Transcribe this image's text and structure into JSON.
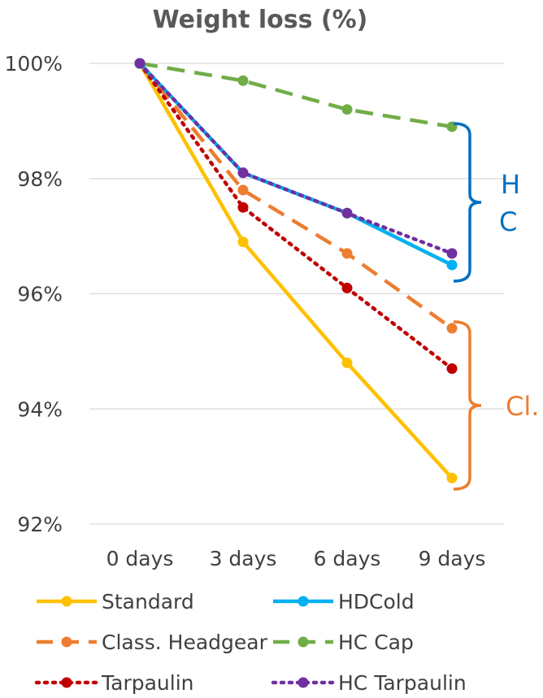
{
  "chart_data": {
    "type": "line",
    "title": "Weight loss (%)",
    "xlabel": "",
    "ylabel": "",
    "categories": [
      "0 days",
      "3 days",
      "6 days",
      "9 days"
    ],
    "ylim": [
      92,
      100
    ],
    "yticks": [
      "100%",
      "98%",
      "96%",
      "94%",
      "92%"
    ],
    "ytick_values": [
      100,
      98,
      96,
      94,
      92
    ],
    "grid": true,
    "legend": "bottom",
    "series": [
      {
        "name": "Standard",
        "values": [
          100,
          96.9,
          94.8,
          92.8
        ],
        "color": "#FFC000",
        "dash": "solid"
      },
      {
        "name": "HDCold",
        "values": [
          100,
          98.1,
          97.4,
          96.5
        ],
        "color": "#00B0F0",
        "dash": "solid"
      },
      {
        "name": "Class. Headgear",
        "values": [
          100,
          97.8,
          96.7,
          95.4
        ],
        "color": "#ED7D31",
        "dash": "dash"
      },
      {
        "name": "HC Cap",
        "values": [
          100,
          99.7,
          99.2,
          98.9
        ],
        "color": "#70AD47",
        "dash": "dash"
      },
      {
        "name": "Tarpaulin",
        "values": [
          100,
          97.5,
          96.1,
          94.7
        ],
        "color": "#C00000",
        "dash": "dot"
      },
      {
        "name": "HC Tarpaulin",
        "values": [
          100,
          98.1,
          97.4,
          96.7
        ],
        "color": "#7030A0",
        "dash": "dot"
      }
    ],
    "annotations": [
      {
        "text": "H",
        "color": "#0070C0"
      },
      {
        "text": "C",
        "color": "#0070C0"
      },
      {
        "text": "Cl.",
        "color": "#ED7D31"
      }
    ]
  }
}
